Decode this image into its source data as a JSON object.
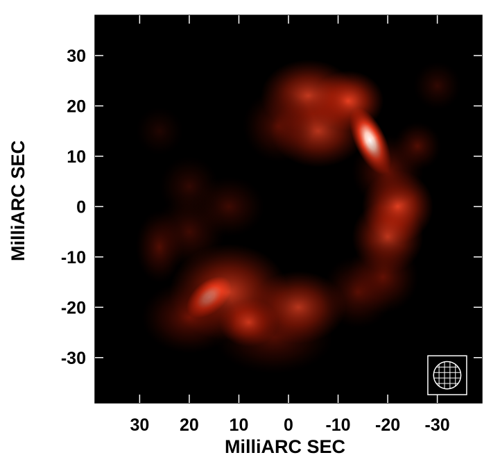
{
  "chart_data": {
    "type": "heatmap",
    "title": "",
    "xlabel": "MilliARC SEC",
    "ylabel": "MilliARC SEC",
    "xlim": [
      39,
      -39
    ],
    "ylim": [
      -39,
      38
    ],
    "x_ticks": [
      30,
      20,
      10,
      0,
      -10,
      -20,
      -30
    ],
    "y_ticks": [
      30,
      20,
      10,
      0,
      -10,
      -20,
      -30
    ],
    "x_tick_labels": [
      "30",
      "20",
      "10",
      "0",
      "-10",
      "-20",
      "-30"
    ],
    "y_tick_labels": [
      "30",
      "20",
      "10",
      "0",
      "-10",
      "-20",
      "-30"
    ],
    "colormap": [
      "#000000",
      "#5a0a02",
      "#b01c08",
      "#ff4020",
      "#ffc8b8",
      "#ffffff"
    ],
    "background_color": "#000000",
    "beam": {
      "x": -32,
      "y": -33.5,
      "diameter": 5.5
    },
    "emission_components": [
      {
        "x": 16,
        "y": -18,
        "sx": 2.2,
        "sy": 1.3,
        "angle": -40,
        "intensity": 1.0
      },
      {
        "x": 12,
        "y": -17,
        "sx": 5,
        "sy": 4,
        "angle": 0,
        "intensity": 0.35
      },
      {
        "x": 8,
        "y": -23,
        "sx": 2.5,
        "sy": 2,
        "angle": 0,
        "intensity": 0.55
      },
      {
        "x": 3,
        "y": -26,
        "sx": 5,
        "sy": 3,
        "angle": 0,
        "intensity": 0.2
      },
      {
        "x": -2,
        "y": -20,
        "sx": 4,
        "sy": 3,
        "angle": 0,
        "intensity": 0.3
      },
      {
        "x": 20,
        "y": -22,
        "sx": 4,
        "sy": 3,
        "angle": 0,
        "intensity": 0.25
      },
      {
        "x": 26,
        "y": -8,
        "sx": 2,
        "sy": 3,
        "angle": 0,
        "intensity": 0.2
      },
      {
        "x": 20,
        "y": -5,
        "sx": 3,
        "sy": 3,
        "angle": 0,
        "intensity": 0.15
      },
      {
        "x": -16.5,
        "y": 13,
        "sx": 1.3,
        "sy": 3,
        "angle": -25,
        "intensity": 0.9
      },
      {
        "x": -12,
        "y": 21,
        "sx": 3,
        "sy": 2.5,
        "angle": 0,
        "intensity": 0.55
      },
      {
        "x": -4,
        "y": 22,
        "sx": 4,
        "sy": 3,
        "angle": 0,
        "intensity": 0.35
      },
      {
        "x": -6,
        "y": 15,
        "sx": 4,
        "sy": 3,
        "angle": 0,
        "intensity": 0.3
      },
      {
        "x": 2,
        "y": 16,
        "sx": 3,
        "sy": 3,
        "angle": 0,
        "intensity": 0.2
      },
      {
        "x": -22,
        "y": 0,
        "sx": 3,
        "sy": 3,
        "angle": 0,
        "intensity": 0.5
      },
      {
        "x": -20,
        "y": -6,
        "sx": 3,
        "sy": 3,
        "angle": 0,
        "intensity": 0.3
      },
      {
        "x": -19,
        "y": -14,
        "sx": 3,
        "sy": 3,
        "angle": 0,
        "intensity": 0.25
      },
      {
        "x": -14,
        "y": -17,
        "sx": 3,
        "sy": 3,
        "angle": 0,
        "intensity": 0.2
      },
      {
        "x": -20,
        "y": 7,
        "sx": 3,
        "sy": 3,
        "angle": 0,
        "intensity": 0.25
      },
      {
        "x": -26,
        "y": 12,
        "sx": 2,
        "sy": 2,
        "angle": 0,
        "intensity": 0.2
      },
      {
        "x": 12,
        "y": 0,
        "sx": 3,
        "sy": 2.5,
        "angle": 0,
        "intensity": 0.15
      },
      {
        "x": 20,
        "y": 4,
        "sx": 2.5,
        "sy": 2.5,
        "angle": 0,
        "intensity": 0.12
      },
      {
        "x": -30,
        "y": 24,
        "sx": 2,
        "sy": 2,
        "angle": 0,
        "intensity": 0.12
      },
      {
        "x": 26,
        "y": 15,
        "sx": 2,
        "sy": 2,
        "angle": 0,
        "intensity": 0.08
      }
    ]
  }
}
